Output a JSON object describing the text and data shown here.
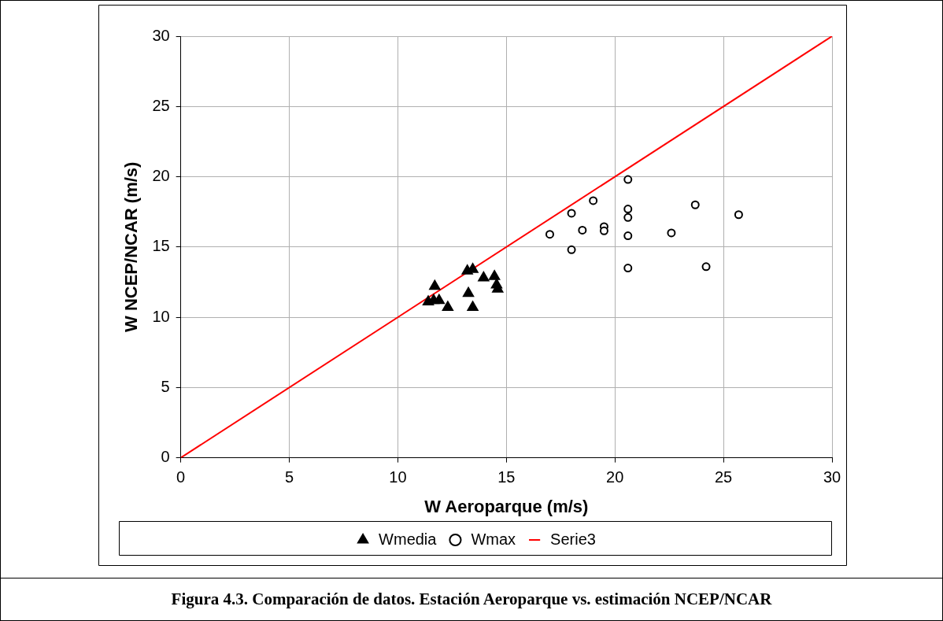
{
  "chart_data": {
    "type": "scatter",
    "xlabel": "W Aeroparque (m/s)",
    "ylabel": "W NCEP/NCAR (m/s)",
    "xlim": [
      0,
      30
    ],
    "xticks": [
      0,
      5,
      10,
      15,
      20,
      25,
      30
    ],
    "ylim": [
      0,
      30
    ],
    "yticks": [
      0,
      5,
      10,
      15,
      20,
      25,
      30
    ],
    "grid": true,
    "legend": "bottom",
    "series": [
      {
        "name": "Wmedia",
        "color": "#000000",
        "marker": "triangle",
        "x": [
          11.7,
          11.4,
          11.65,
          11.9,
          12.3,
          13.2,
          13.45,
          13.25,
          13.45,
          13.95,
          14.45,
          14.55,
          14.6
        ],
        "values": [
          12.2,
          11.1,
          11.2,
          11.2,
          10.7,
          13.3,
          13.4,
          11.7,
          10.7,
          12.8,
          12.9,
          12.3,
          12.0
        ]
      },
      {
        "name": "Wmax",
        "color": "#000000",
        "marker": "circle",
        "x": [
          17.0,
          18.0,
          18.0,
          18.5,
          19.0,
          19.5,
          19.5,
          20.6,
          20.6,
          20.6,
          20.6,
          20.6,
          22.6,
          23.7,
          24.2,
          25.7
        ],
        "values": [
          15.9,
          17.4,
          14.8,
          16.2,
          18.3,
          16.45,
          16.15,
          19.8,
          17.7,
          17.1,
          15.8,
          13.5,
          16.0,
          18.0,
          13.6,
          17.3
        ]
      },
      {
        "name": "Serie3",
        "type": "line",
        "color": "#ff0000",
        "marker": "none",
        "x": [
          0,
          30
        ],
        "values": [
          0,
          30
        ]
      }
    ],
    "annotations": [
      "Figura 4.3. Comparación de datos.  Estación Aeroparque vs. estimación NCEP/NCAR"
    ]
  }
}
